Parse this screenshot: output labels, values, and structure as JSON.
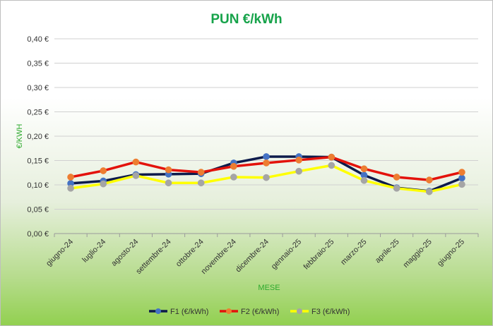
{
  "chart_data": {
    "type": "line",
    "title": "PUN €/kWh",
    "xlabel": "MESE",
    "ylabel": "€/KWH",
    "categories": [
      "giugno-24",
      "luglio-24",
      "agosto-24",
      "settembre-24",
      "ottobre-24",
      "novembre-24",
      "dicembre-24",
      "gennaio-25",
      "febbraio-25",
      "marzo-25",
      "aprile-25",
      "maggio-25",
      "giugno-25"
    ],
    "yticks": [
      "0,00 €",
      "0,05 €",
      "0,10 €",
      "0,15 €",
      "0,20 €",
      "0,25 €",
      "0,30 €",
      "0,35 €",
      "0,40 €"
    ],
    "ylim": [
      0,
      0.4
    ],
    "grid": true,
    "legend_position": "bottom",
    "series": [
      {
        "name": "F1 (€/kWh)",
        "line_color": "#0d1b4b",
        "marker_color": "#4472c4",
        "values": [
          0.103,
          0.108,
          0.121,
          0.122,
          0.123,
          0.145,
          0.158,
          0.158,
          0.157,
          0.12,
          0.094,
          0.087,
          0.114
        ]
      },
      {
        "name": "F2 (€/kWh)",
        "line_color": "#e3120b",
        "marker_color": "#ed7d31",
        "values": [
          0.116,
          0.129,
          0.147,
          0.131,
          0.126,
          0.138,
          0.145,
          0.151,
          0.157,
          0.133,
          0.116,
          0.11,
          0.126
        ]
      },
      {
        "name": "F3 (€/kWh)",
        "line_color": "#ffff00",
        "marker_color": "#a5a5a5",
        "values": [
          0.093,
          0.102,
          0.119,
          0.104,
          0.104,
          0.116,
          0.115,
          0.128,
          0.14,
          0.109,
          0.093,
          0.086,
          0.101
        ]
      }
    ]
  }
}
